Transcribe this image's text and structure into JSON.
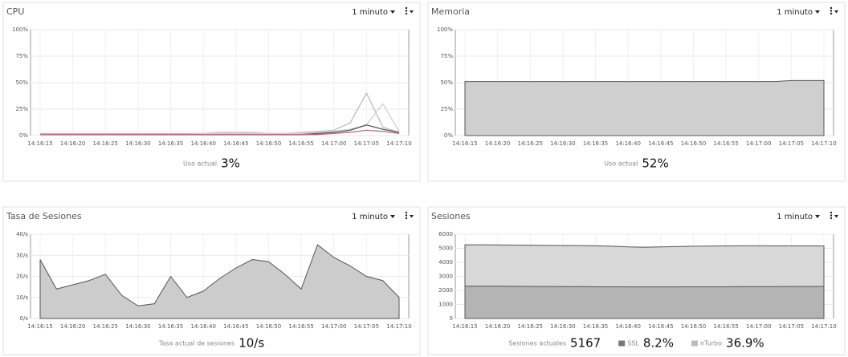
{
  "chart_data": [
    {
      "type": "line",
      "title": "CPU",
      "period": "1 minuto",
      "categories": [
        "14:16:15",
        null,
        "14:16:20",
        null,
        "14:16:25",
        null,
        "14:16:30",
        null,
        "14:16:35",
        null,
        "14:16:40",
        null,
        "14:16:45",
        null,
        "14:16:50",
        null,
        "14:16:55",
        null,
        "14:17:00",
        null,
        "14:17:05",
        null,
        "14:17:10"
      ],
      "ylim": [
        0,
        100
      ],
      "yticks": [
        {
          "value": 0,
          "label": "0%"
        },
        {
          "value": 25,
          "label": "25%"
        },
        {
          "value": 50,
          "label": "50%"
        },
        {
          "value": 75,
          "label": "75%"
        },
        {
          "value": 100,
          "label": "100%"
        }
      ],
      "series": [
        {
          "color": "#bdbdbd",
          "values": [
            2,
            2,
            2,
            2,
            2,
            2,
            2,
            2,
            2,
            2,
            2,
            3,
            3,
            3,
            2,
            2,
            3,
            4,
            5,
            12,
            40,
            8,
            3
          ]
        },
        {
          "color": "#d0d0d0",
          "values": [
            1,
            1,
            1,
            1,
            1,
            1,
            1,
            1,
            1,
            1,
            2,
            2,
            2,
            2,
            2,
            2,
            2,
            3,
            4,
            6,
            10,
            30,
            4
          ]
        },
        {
          "color": "#555555",
          "values": [
            1,
            1,
            1,
            1,
            1,
            1,
            1,
            1,
            1,
            1,
            1,
            1,
            1,
            1,
            1,
            1,
            1,
            2,
            3,
            5,
            10,
            6,
            3
          ]
        },
        {
          "color": "#b07070",
          "values": [
            1,
            1,
            1,
            1,
            1,
            1,
            1,
            1,
            1,
            1,
            1,
            1,
            1,
            1,
            1,
            1,
            1,
            1,
            2,
            3,
            5,
            4,
            2
          ]
        }
      ],
      "footer": [
        {
          "label": "Uso actual",
          "value": "3%"
        }
      ]
    },
    {
      "type": "area",
      "title": "Memoria",
      "period": "1 minuto",
      "categories": [
        "14:16:15",
        null,
        "14:16:20",
        null,
        "14:16:25",
        null,
        "14:16:30",
        null,
        "14:16:35",
        null,
        "14:16:40",
        null,
        "14:16:45",
        null,
        "14:16:50",
        null,
        "14:16:55",
        null,
        "14:17:00",
        null,
        "14:17:05",
        null,
        "14:17:10"
      ],
      "ylim": [
        0,
        100
      ],
      "yticks": [
        {
          "value": 0,
          "label": "0%"
        },
        {
          "value": 25,
          "label": "25%"
        },
        {
          "value": 50,
          "label": "50%"
        },
        {
          "value": 75,
          "label": "75%"
        },
        {
          "value": 100,
          "label": "100%"
        }
      ],
      "series": [
        {
          "color": "#cfcfcf",
          "values": [
            51,
            51,
            51,
            51,
            51,
            51,
            51,
            51,
            51,
            51,
            51,
            51,
            51,
            51,
            51,
            51,
            51,
            51,
            51,
            51,
            52,
            52,
            52
          ]
        }
      ],
      "footer": [
        {
          "label": "Uso actual",
          "value": "52%"
        }
      ]
    },
    {
      "type": "area",
      "title": "Tasa de Sesiones",
      "period": "1 minuto",
      "categories": [
        "14:16:15",
        null,
        "14:16:20",
        null,
        "14:16:25",
        null,
        "14:16:30",
        null,
        "14:16:35",
        null,
        "14:16:40",
        null,
        "14:16:45",
        null,
        "14:16:50",
        null,
        "14:16:55",
        null,
        "14:17:00",
        null,
        "14:17:05",
        null,
        "14:17:10"
      ],
      "ylim": [
        0,
        40
      ],
      "yticks": [
        {
          "value": 0,
          "label": "0/s"
        },
        {
          "value": 10,
          "label": "10/s"
        },
        {
          "value": 20,
          "label": "20/s"
        },
        {
          "value": 30,
          "label": "30/s"
        },
        {
          "value": 40,
          "label": "40/s"
        }
      ],
      "series": [
        {
          "color": "#cccccc",
          "values": [
            28,
            14,
            16,
            18,
            21,
            11,
            6,
            7,
            20,
            10,
            13,
            19,
            24,
            28,
            27,
            21,
            14,
            35,
            29,
            25,
            20,
            18,
            10
          ]
        }
      ],
      "footer": [
        {
          "label": "Tasa actual de sesiones",
          "value": "10/s"
        }
      ]
    },
    {
      "type": "area",
      "title": "Sesiones",
      "period": "1 minuto",
      "categories": [
        "14:16:15",
        null,
        "14:16:20",
        null,
        "14:16:25",
        null,
        "14:16:30",
        null,
        "14:16:35",
        null,
        "14:16:40",
        null,
        "14:16:45",
        null,
        "14:16:50",
        null,
        "14:16:55",
        null,
        "14:17:00",
        null,
        "14:17:05",
        null,
        "14:17:10"
      ],
      "ylim": [
        0,
        6000
      ],
      "yticks": [
        0,
        1000,
        2000,
        3000,
        4000,
        5000,
        6000
      ],
      "series": [
        {
          "color": "#d8d8d8",
          "values": [
            5250,
            5250,
            5240,
            5230,
            5220,
            5210,
            5200,
            5190,
            5180,
            5150,
            5100,
            5080,
            5100,
            5120,
            5150,
            5160,
            5170,
            5180,
            5180,
            5170,
            5170,
            5170,
            5167
          ]
        },
        {
          "color": "#b4b4b4",
          "values": [
            2300,
            2300,
            2300,
            2290,
            2280,
            2280,
            2270,
            2270,
            2260,
            2260,
            2250,
            2250,
            2250,
            2250,
            2260,
            2260,
            2260,
            2270,
            2270,
            2270,
            2280,
            2280,
            2280
          ]
        }
      ],
      "footer": [
        {
          "label": "Sesiones actuales",
          "value": "5167"
        },
        {
          "label": "SSL",
          "value": "8.2%",
          "swatch": "#777777"
        },
        {
          "label": "nTurbo",
          "value": "36.9%",
          "swatch": "#bbbbbb"
        }
      ]
    }
  ]
}
